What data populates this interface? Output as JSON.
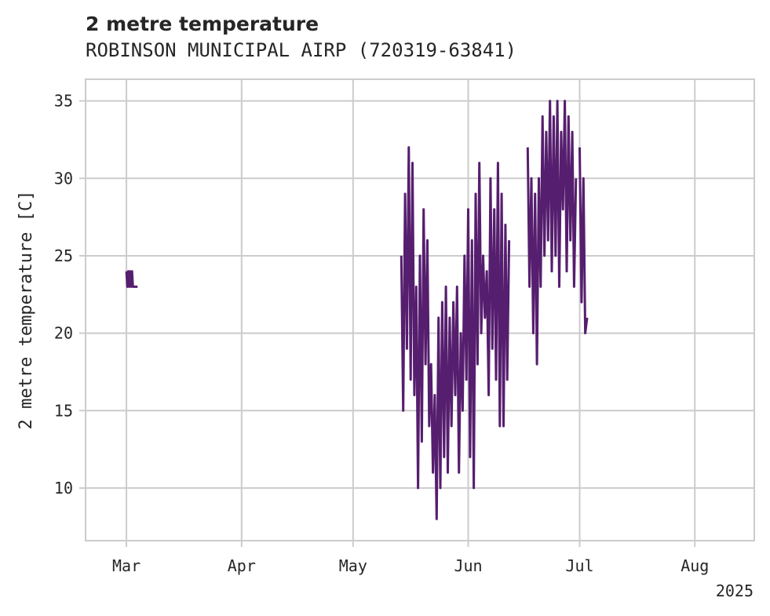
{
  "chart_data": {
    "type": "line",
    "title": "2 metre temperature",
    "subtitle": "ROBINSON MUNICIPAL AIRP (720319-63841)",
    "xlabel": "",
    "ylabel": "2 metre temperature [C]",
    "x_ticks": [
      {
        "date": "2025-03-01",
        "label": "Mar"
      },
      {
        "date": "2025-04-01",
        "label": "Apr"
      },
      {
        "date": "2025-05-01",
        "label": "May"
      },
      {
        "date": "2025-06-01",
        "label": "Jun"
      },
      {
        "date": "2025-07-01",
        "label": "Jul"
      },
      {
        "date": "2025-08-01",
        "label": "Aug"
      }
    ],
    "x_offset_label": "2025",
    "xlim": [
      "2025-02-18T00:00",
      "2025-08-17T00:00"
    ],
    "ylim": [
      6.6,
      36.4
    ],
    "y_ticks": [
      10,
      15,
      20,
      25,
      30,
      35
    ],
    "grid": true,
    "legend": "none",
    "line_color": "#561e6e",
    "series": [
      {
        "x": [
          "2025-03-01T00:00",
          "2025-03-01T06:00",
          "2025-03-01T12:00",
          "2025-03-01T18:00",
          "2025-03-02T00:00",
          "2025-03-02T06:00",
          "2025-03-02T12:00",
          "2025-03-02T18:00",
          "2025-03-03T00:00",
          "2025-03-03T12:00",
          "2025-03-04T00:00"
        ],
        "values": [
          24,
          23,
          24,
          23,
          24,
          23,
          24,
          23,
          23,
          23,
          23
        ]
      },
      {
        "x": [
          "2025-05-14T00:00",
          "2025-05-14T12:00",
          "2025-05-15T00:00",
          "2025-05-15T12:00",
          "2025-05-16T00:00",
          "2025-05-16T12:00",
          "2025-05-17T00:00",
          "2025-05-17T12:00",
          "2025-05-18T00:00",
          "2025-05-18T12:00",
          "2025-05-19T00:00",
          "2025-05-19T12:00",
          "2025-05-20T00:00",
          "2025-05-20T12:00",
          "2025-05-21T00:00",
          "2025-05-21T12:00",
          "2025-05-22T00:00",
          "2025-05-22T12:00",
          "2025-05-23T00:00",
          "2025-05-23T12:00",
          "2025-05-24T00:00",
          "2025-05-24T12:00",
          "2025-05-25T00:00",
          "2025-05-25T12:00",
          "2025-05-26T00:00",
          "2025-05-26T12:00",
          "2025-05-27T00:00",
          "2025-05-27T12:00",
          "2025-05-28T00:00",
          "2025-05-28T12:00",
          "2025-05-29T00:00",
          "2025-05-29T12:00",
          "2025-05-30T00:00",
          "2025-05-30T12:00",
          "2025-05-31T00:00",
          "2025-05-31T12:00",
          "2025-06-01T00:00",
          "2025-06-01T12:00",
          "2025-06-02T00:00",
          "2025-06-02T12:00",
          "2025-06-03T00:00",
          "2025-06-03T12:00",
          "2025-06-04T00:00",
          "2025-06-04T12:00",
          "2025-06-05T00:00",
          "2025-06-05T12:00",
          "2025-06-06T00:00",
          "2025-06-06T12:00",
          "2025-06-07T00:00",
          "2025-06-07T12:00",
          "2025-06-08T00:00",
          "2025-06-08T12:00",
          "2025-06-09T00:00",
          "2025-06-09T12:00",
          "2025-06-10T00:00",
          "2025-06-10T12:00",
          "2025-06-11T00:00",
          "2025-06-11T12:00",
          "2025-06-12T00:00"
        ],
        "values": [
          25,
          15,
          29,
          19,
          32,
          17,
          31,
          16,
          23,
          10,
          25,
          13,
          28,
          18,
          26,
          14,
          18,
          11,
          16,
          8,
          21,
          10,
          22,
          12,
          23,
          11,
          21,
          14,
          22,
          16,
          23,
          11,
          20,
          15,
          25,
          17,
          28,
          12,
          26,
          10,
          29,
          18,
          31,
          20,
          25,
          21,
          24,
          16,
          30,
          19,
          28,
          17,
          31,
          14,
          29,
          14,
          27,
          17,
          26
        ]
      },
      {
        "x": [
          "2025-06-17T00:00",
          "2025-06-17T12:00",
          "2025-06-18T00:00",
          "2025-06-18T12:00",
          "2025-06-19T00:00",
          "2025-06-19T12:00",
          "2025-06-20T00:00",
          "2025-06-20T12:00",
          "2025-06-21T00:00",
          "2025-06-21T12:00",
          "2025-06-22T00:00",
          "2025-06-22T12:00",
          "2025-06-23T00:00",
          "2025-06-23T12:00",
          "2025-06-24T00:00",
          "2025-06-24T12:00",
          "2025-06-25T00:00",
          "2025-06-25T12:00",
          "2025-06-26T00:00",
          "2025-06-26T12:00",
          "2025-06-27T00:00",
          "2025-06-27T12:00",
          "2025-06-28T00:00",
          "2025-06-28T12:00",
          "2025-06-29T00:00",
          "2025-06-29T12:00",
          "2025-06-30T00:00"
        ],
        "values": [
          32,
          23,
          30,
          20,
          29,
          18,
          30,
          23,
          34,
          25,
          33,
          26,
          35,
          24,
          34,
          25,
          35,
          23,
          33,
          28,
          35,
          24,
          34,
          26,
          33,
          23,
          30
        ]
      },
      {
        "x": [
          "2025-07-01T00:00",
          "2025-07-01T12:00",
          "2025-07-02T00:00",
          "2025-07-02T12:00",
          "2025-07-03T00:00"
        ],
        "values": [
          32,
          22,
          30,
          20,
          21
        ]
      }
    ]
  }
}
